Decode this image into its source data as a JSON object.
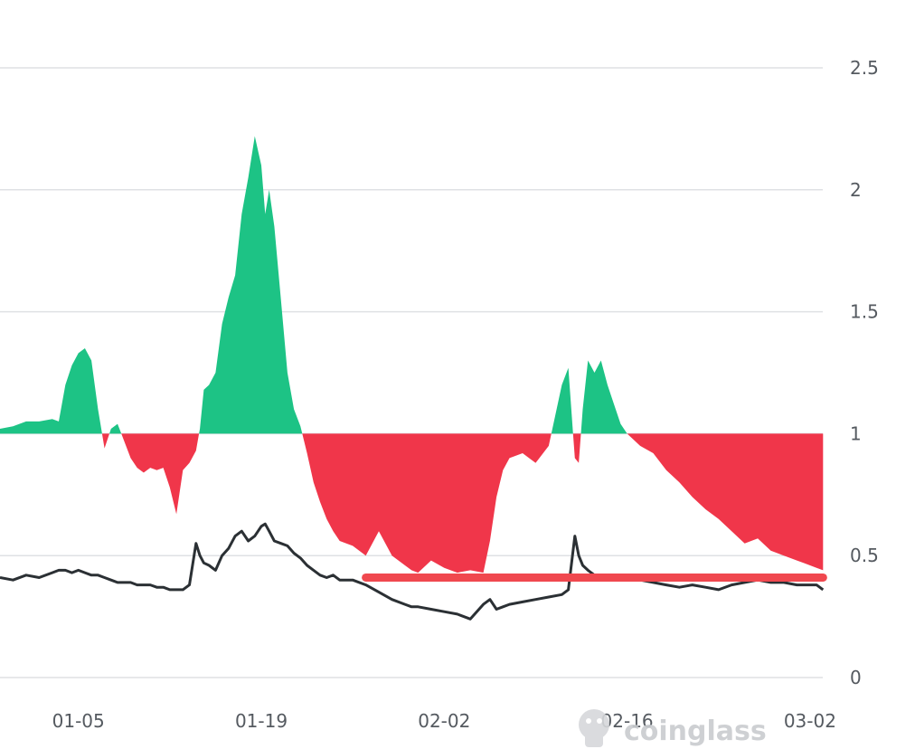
{
  "watermark": {
    "brand": "coinglass"
  },
  "colors": {
    "above": "#1dc385",
    "below": "#f0364a",
    "line": "#2b3034",
    "marker": "#f0484f",
    "grid": "#dfe1e4",
    "tick": "#555a60"
  },
  "chart_data": {
    "type": "area",
    "grid": true,
    "baseline": 1,
    "ylim": [
      0,
      2.6
    ],
    "y_ticks": [
      "0",
      "0.5",
      "1",
      "1.5",
      "2",
      "2.5"
    ],
    "y_tick_values": [
      0,
      0.5,
      1,
      1.5,
      2,
      2.5
    ],
    "x_ticks": [
      "01-05",
      "01-19",
      "02-02",
      "02-16",
      "03-02"
    ],
    "x_tick_days": [
      6,
      20,
      34,
      48,
      62
    ],
    "x": [
      0.0,
      1.0,
      2.0,
      3.0,
      4.0,
      4.5,
      5.0,
      5.5,
      6.0,
      6.5,
      7.0,
      7.5,
      8.0,
      8.5,
      9.0,
      9.5,
      10.0,
      10.5,
      11.0,
      11.5,
      12.0,
      12.5,
      13.0,
      13.5,
      14.0,
      14.5,
      15.0,
      15.3,
      15.6,
      16.0,
      16.5,
      17.0,
      17.5,
      18.0,
      18.5,
      19.0,
      19.5,
      20.0,
      20.3,
      20.6,
      21.0,
      21.5,
      22.0,
      22.5,
      23.0,
      23.5,
      24.0,
      24.5,
      25.0,
      25.5,
      26.0,
      27.0,
      28.0,
      29.0,
      30.0,
      31.0,
      31.5,
      32.0,
      33.0,
      34.0,
      35.0,
      36.0,
      37.0,
      37.5,
      38.0,
      38.5,
      39.0,
      40.0,
      41.0,
      42.0,
      43.0,
      43.5,
      44.0,
      44.3,
      44.6,
      45.0,
      45.5,
      46.0,
      46.5,
      47.0,
      47.5,
      48.0,
      49.0,
      50.0,
      51.0,
      52.0,
      53.0,
      54.0,
      55.0,
      56.0,
      57.0,
      58.0,
      59.0,
      60.0,
      61.0,
      62.0,
      62.5,
      63.0
    ],
    "series": [
      {
        "role": "ratio",
        "values": [
          1.02,
          1.03,
          1.05,
          1.05,
          1.06,
          1.05,
          1.2,
          1.28,
          1.33,
          1.35,
          1.3,
          1.1,
          0.94,
          1.02,
          1.04,
          0.97,
          0.9,
          0.86,
          0.84,
          0.86,
          0.85,
          0.86,
          0.78,
          0.67,
          0.85,
          0.88,
          0.93,
          1.02,
          1.18,
          1.2,
          1.25,
          1.45,
          1.56,
          1.65,
          1.9,
          2.05,
          2.22,
          2.1,
          1.9,
          2.0,
          1.85,
          1.55,
          1.25,
          1.1,
          1.03,
          0.92,
          0.8,
          0.72,
          0.65,
          0.6,
          0.56,
          0.54,
          0.5,
          0.6,
          0.5,
          0.46,
          0.44,
          0.43,
          0.48,
          0.45,
          0.43,
          0.44,
          0.43,
          0.56,
          0.74,
          0.85,
          0.9,
          0.92,
          0.88,
          0.95,
          1.2,
          1.27,
          0.9,
          0.88,
          1.1,
          1.3,
          1.25,
          1.3,
          1.2,
          1.12,
          1.04,
          1.0,
          0.95,
          0.92,
          0.85,
          0.8,
          0.74,
          0.69,
          0.65,
          0.6,
          0.55,
          0.57,
          0.52,
          0.5,
          0.48,
          0.46,
          0.45,
          0.44
        ]
      },
      {
        "role": "line",
        "values": [
          0.41,
          0.4,
          0.42,
          0.41,
          0.43,
          0.44,
          0.44,
          0.43,
          0.44,
          0.43,
          0.42,
          0.42,
          0.41,
          0.4,
          0.39,
          0.39,
          0.39,
          0.38,
          0.38,
          0.38,
          0.37,
          0.37,
          0.36,
          0.36,
          0.36,
          0.38,
          0.55,
          0.5,
          0.47,
          0.46,
          0.44,
          0.5,
          0.53,
          0.58,
          0.6,
          0.56,
          0.58,
          0.62,
          0.63,
          0.6,
          0.56,
          0.55,
          0.54,
          0.51,
          0.49,
          0.46,
          0.44,
          0.42,
          0.41,
          0.42,
          0.4,
          0.4,
          0.38,
          0.35,
          0.32,
          0.3,
          0.29,
          0.29,
          0.28,
          0.27,
          0.26,
          0.24,
          0.3,
          0.32,
          0.28,
          0.29,
          0.3,
          0.31,
          0.32,
          0.33,
          0.34,
          0.36,
          0.58,
          0.5,
          0.46,
          0.44,
          0.42,
          0.42,
          0.41,
          0.41,
          0.42,
          0.4,
          0.4,
          0.39,
          0.38,
          0.37,
          0.38,
          0.37,
          0.36,
          0.38,
          0.39,
          0.4,
          0.39,
          0.39,
          0.38,
          0.38,
          0.38,
          0.36
        ]
      }
    ],
    "marker_line": {
      "value": 0.41,
      "x_start": 28.0,
      "x_end": 63.0
    }
  }
}
